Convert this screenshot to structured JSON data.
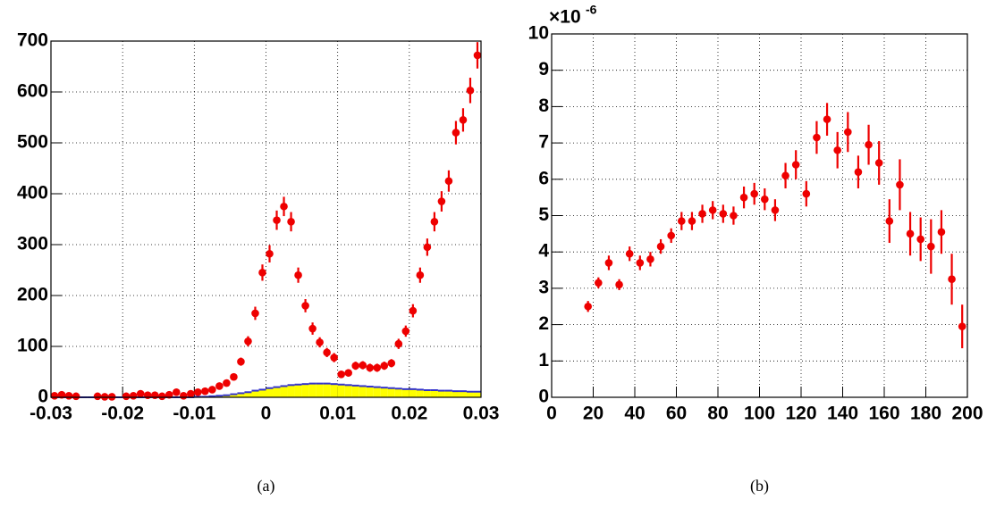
{
  "chart_data": [
    {
      "type": "scatter",
      "xlim": [
        -0.03,
        0.03
      ],
      "ylim": [
        0,
        700
      ],
      "xticks": [
        -0.03,
        -0.02,
        -0.01,
        0,
        0.01,
        0.02,
        0.03
      ],
      "yticks": [
        0,
        100,
        200,
        300,
        400,
        500,
        600,
        700
      ],
      "grid": true,
      "color": "#ee0000",
      "caption": "(a)",
      "x": [
        -0.0295,
        -0.0285,
        -0.0275,
        -0.0265,
        -0.0255,
        -0.0245,
        -0.0235,
        -0.0225,
        -0.0215,
        -0.0205,
        -0.0195,
        -0.0185,
        -0.0175,
        -0.0165,
        -0.0155,
        -0.0145,
        -0.0135,
        -0.0125,
        -0.0115,
        -0.0105,
        -0.0095,
        -0.0085,
        -0.0075,
        -0.0065,
        -0.0055,
        -0.0045,
        -0.0035,
        -0.0025,
        -0.0015,
        -0.0005,
        0.0005,
        0.0015,
        0.0025,
        0.0035,
        0.0045,
        0.0055,
        0.0065,
        0.0075,
        0.0085,
        0.0095,
        0.0105,
        0.0115,
        0.0125,
        0.0135,
        0.0145,
        0.0155,
        0.0165,
        0.0175,
        0.0185,
        0.0195,
        0.0205,
        0.0215,
        0.0225,
        0.0235,
        0.0245,
        0.0255,
        0.0265,
        0.0275,
        0.0285,
        0.0295
      ],
      "values": [
        3,
        5,
        3,
        2,
        null,
        null,
        2,
        1,
        1,
        null,
        2,
        3,
        7,
        4,
        4,
        2,
        5,
        10,
        3,
        7,
        10,
        12,
        15,
        22,
        28,
        40,
        70,
        110,
        165,
        245,
        282,
        348,
        375,
        345,
        240,
        180,
        135,
        108,
        88,
        78,
        45,
        48,
        62,
        63,
        58,
        58,
        62,
        67,
        105,
        130,
        170,
        240,
        295,
        345,
        385,
        425,
        520,
        545,
        603,
        672
      ],
      "errors": [
        2,
        2,
        2,
        1,
        null,
        null,
        1,
        1,
        1,
        null,
        1,
        2,
        3,
        2,
        2,
        1,
        2,
        3,
        2,
        3,
        3,
        3,
        4,
        5,
        5,
        6,
        8,
        10,
        13,
        16,
        17,
        19,
        19,
        19,
        15,
        13,
        12,
        10,
        9,
        9,
        7,
        7,
        8,
        8,
        8,
        8,
        8,
        8,
        10,
        11,
        13,
        15,
        17,
        19,
        20,
        21,
        23,
        23,
        25,
        26
      ],
      "histogram": {
        "fill": "#ffff00",
        "line": "#3333cc",
        "bins": [
          -0.03,
          -0.029,
          -0.028,
          -0.027,
          -0.026,
          -0.025,
          -0.024,
          -0.023,
          -0.022,
          -0.021,
          -0.02,
          -0.019,
          -0.018,
          -0.017,
          -0.016,
          -0.015,
          -0.014,
          -0.013,
          -0.012,
          -0.011,
          -0.01,
          -0.009,
          -0.008,
          -0.007,
          -0.006,
          -0.005,
          -0.004,
          -0.003,
          -0.002,
          -0.001,
          0,
          0.001,
          0.002,
          0.003,
          0.004,
          0.005,
          0.006,
          0.007,
          0.008,
          0.009,
          0.01,
          0.011,
          0.012,
          0.013,
          0.014,
          0.015,
          0.016,
          0.017,
          0.018,
          0.019,
          0.02,
          0.021,
          0.022,
          0.023,
          0.024,
          0.025,
          0.026,
          0.027,
          0.028,
          0.029,
          0.03
        ],
        "counts": [
          0,
          0,
          0,
          0,
          0,
          0,
          0,
          0,
          0,
          0,
          0,
          0,
          0,
          0,
          0,
          0,
          0,
          0,
          0,
          0,
          1,
          1,
          2,
          3,
          4,
          6,
          8,
          10,
          13,
          15,
          18,
          20,
          22,
          24,
          25,
          26,
          27,
          27,
          27,
          26,
          25,
          24,
          23,
          22,
          21,
          20,
          19,
          18,
          17,
          16,
          16,
          15,
          14,
          14,
          13,
          13,
          12,
          12,
          11,
          11
        ]
      }
    },
    {
      "type": "scatter",
      "xlim": [
        0,
        200
      ],
      "ylim": [
        0,
        10
      ],
      "xticks": [
        0,
        20,
        40,
        60,
        80,
        100,
        120,
        140,
        160,
        180,
        200
      ],
      "yticks": [
        0,
        1,
        2,
        3,
        4,
        5,
        6,
        7,
        8,
        9,
        10
      ],
      "y_multiplier": "×10",
      "y_multiplier_exponent": "-6",
      "grid": true,
      "color": "#ee0000",
      "caption": "(b)",
      "x": [
        17.5,
        22.5,
        27.5,
        32.5,
        37.5,
        42.5,
        47.5,
        52.5,
        57.5,
        62.5,
        67.5,
        72.5,
        77.5,
        82.5,
        87.5,
        92.5,
        97.5,
        102.5,
        107.5,
        112.5,
        117.5,
        122.5,
        127.5,
        132.5,
        137.5,
        142.5,
        147.5,
        152.5,
        157.5,
        162.5,
        167.5,
        172.5,
        177.5,
        182.5,
        187.5,
        192.5,
        197.5
      ],
      "values": [
        2.5,
        3.15,
        3.7,
        3.1,
        3.95,
        3.7,
        3.8,
        4.15,
        4.45,
        4.85,
        4.85,
        5.05,
        5.15,
        5.05,
        5.0,
        5.5,
        5.6,
        5.45,
        5.15,
        6.1,
        6.4,
        5.6,
        7.15,
        7.65,
        6.8,
        7.3,
        6.2,
        6.95,
        6.45,
        4.85,
        5.85,
        4.5,
        4.35,
        4.15,
        4.55,
        3.25,
        1.95
      ],
      "errors": [
        0.15,
        0.15,
        0.2,
        0.15,
        0.2,
        0.2,
        0.2,
        0.2,
        0.2,
        0.25,
        0.25,
        0.25,
        0.25,
        0.25,
        0.25,
        0.3,
        0.3,
        0.3,
        0.3,
        0.35,
        0.4,
        0.35,
        0.45,
        0.45,
        0.5,
        0.55,
        0.45,
        0.55,
        0.6,
        0.6,
        0.7,
        0.6,
        0.6,
        0.75,
        0.6,
        0.7,
        0.6
      ]
    }
  ]
}
